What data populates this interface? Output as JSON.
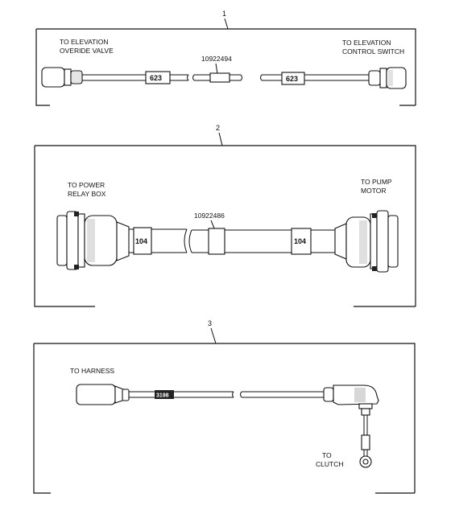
{
  "panels": [
    {
      "number": "1",
      "left_label": [
        "TO ELEVATION",
        "OVERIDE VALVE"
      ],
      "right_label": [
        "TO ELEVATION",
        "CONTROL SWITCH"
      ],
      "part_number": "10922494",
      "left_tag": "623",
      "right_tag": "623"
    },
    {
      "number": "2",
      "left_label": [
        "TO POWER",
        "RELAY BOX"
      ],
      "right_label": [
        "TO PUMP",
        "MOTOR"
      ],
      "part_number": "10922486",
      "left_tag": "104",
      "right_tag": "104"
    },
    {
      "number": "3",
      "left_label": [
        "TO HARNESS"
      ],
      "right_label": [
        "TO",
        "CLUTCH"
      ],
      "left_tag": "3198"
    }
  ]
}
